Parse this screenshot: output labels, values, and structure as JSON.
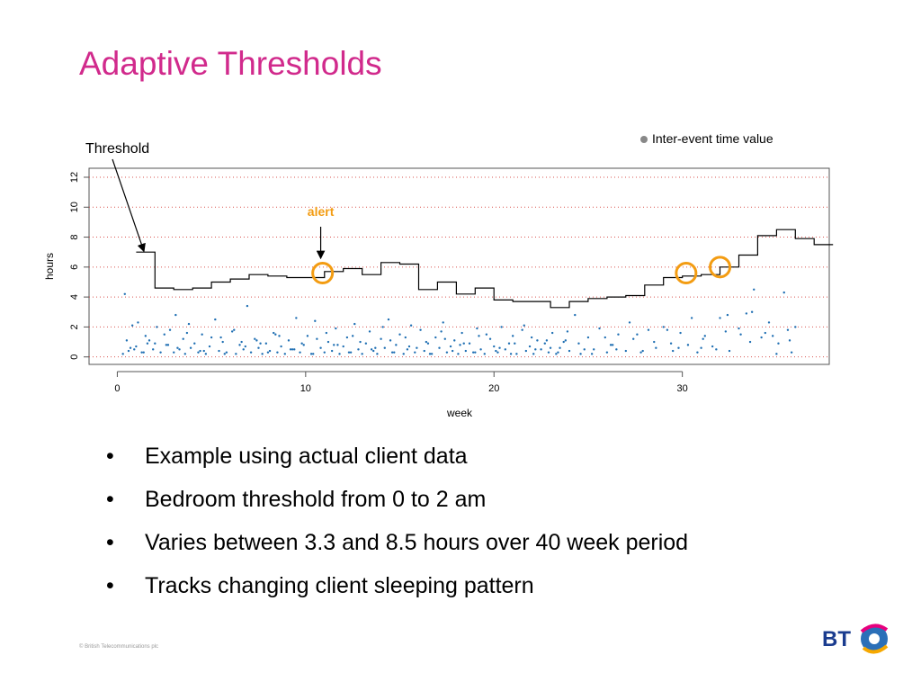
{
  "slide": {
    "title": "Adaptive Thresholds",
    "bullets": [
      "Example using actual client data",
      "Bedroom threshold from 0 to 2 am",
      "Varies between 3.3 and 8.5 hours over 40 week period",
      "Tracks changing client sleeping pattern"
    ],
    "bullet_glyph": "•",
    "copyright": "© British Telecommunications plc",
    "logo_text": "BT"
  },
  "colors": {
    "title": "#d12a8c",
    "points": "#1f6fb3",
    "alert": "#f39c12",
    "grid": "#d9534f",
    "line": "#000000"
  },
  "chart_data": {
    "type": "line",
    "xlabel": "week",
    "ylabel": "hours",
    "xlim": [
      -1.5,
      37.8
    ],
    "ylim": [
      -0.5,
      12.6
    ],
    "x_ticks": [
      0,
      10,
      20,
      30
    ],
    "y_ticks": [
      0,
      2,
      4,
      6,
      8,
      10,
      12
    ],
    "grid_y": [
      0,
      2,
      4,
      6,
      8,
      10,
      12
    ],
    "grid": true,
    "legend": {
      "label": "Inter-event time value",
      "position": "top-right"
    },
    "annotations": [
      {
        "text": "Threshold",
        "point": [
          1.3,
          7.0
        ]
      },
      {
        "text": "alert",
        "point": [
          10.8,
          6.3
        ]
      }
    ],
    "alert_markers": [
      [
        10.9,
        5.6
      ],
      [
        30.2,
        5.6
      ],
      [
        32.0,
        6.0
      ]
    ],
    "series": [
      {
        "kind": "step",
        "x": [
          1,
          2,
          3,
          4,
          5,
          6,
          7,
          8,
          9,
          10,
          11,
          12,
          13,
          14,
          15,
          16,
          17,
          18,
          19,
          20,
          21,
          22,
          23,
          24,
          25,
          26,
          27,
          28,
          29,
          30,
          31,
          32,
          33,
          34,
          35,
          36,
          37
        ],
        "y": [
          7.0,
          4.6,
          4.5,
          4.6,
          5.0,
          5.2,
          5.5,
          5.4,
          5.3,
          5.3,
          5.7,
          5.9,
          5.5,
          6.3,
          6.2,
          4.5,
          5.0,
          4.2,
          4.6,
          3.8,
          3.7,
          3.7,
          3.3,
          3.7,
          3.9,
          4.0,
          4.1,
          4.8,
          5.3,
          5.4,
          5.5,
          6.0,
          6.8,
          8.1,
          8.5,
          7.9,
          7.5
        ]
      },
      {
        "name": "Inter-event time value",
        "kind": "scatter",
        "x": [
          0.3,
          0.5,
          0.6,
          0.8,
          1.0,
          1.1,
          1.3,
          1.5,
          1.6,
          1.9,
          2.1,
          2.3,
          2.6,
          2.8,
          3.0,
          3.1,
          3.3,
          3.5,
          3.6,
          3.9,
          4.1,
          4.3,
          4.5,
          4.7,
          4.9,
          5.2,
          5.4,
          5.6,
          5.8,
          6.1,
          6.3,
          6.5,
          6.7,
          6.9,
          7.1,
          7.3,
          7.5,
          7.7,
          7.9,
          8.1,
          8.3,
          8.5,
          8.7,
          8.9,
          9.1,
          9.3,
          9.5,
          9.7,
          9.9,
          10.1,
          10.3,
          10.5,
          10.8,
          11.0,
          11.2,
          11.4,
          11.6,
          11.8,
          12.0,
          12.2,
          12.4,
          12.6,
          12.8,
          13.0,
          13.2,
          13.4,
          13.6,
          13.8,
          14.0,
          14.2,
          14.4,
          14.6,
          14.8,
          15.0,
          15.2,
          15.4,
          15.6,
          15.8,
          16.1,
          16.3,
          16.5,
          16.7,
          16.9,
          17.1,
          17.3,
          17.5,
          17.7,
          17.9,
          18.1,
          18.3,
          18.5,
          18.7,
          18.9,
          19.1,
          19.3,
          19.5,
          19.8,
          20.0,
          20.2,
          20.4,
          20.6,
          20.8,
          21.0,
          21.2,
          21.5,
          21.7,
          21.9,
          22.1,
          22.3,
          22.5,
          22.7,
          22.9,
          23.1,
          23.3,
          23.5,
          23.7,
          24.0,
          24.3,
          24.6,
          25.0,
          25.3,
          25.6,
          26.0,
          26.3,
          26.6,
          27.0,
          27.4,
          27.8,
          28.2,
          28.6,
          29.0,
          29.5,
          29.9,
          30.3,
          30.8,
          31.2,
          31.6,
          32.0,
          32.5,
          33.0,
          33.4,
          33.8,
          34.2,
          34.6,
          35.0,
          35.4,
          35.7,
          36.0,
          0.4,
          0.9,
          1.4,
          2.0,
          2.5,
          3.2,
          3.8,
          4.4,
          5.0,
          5.7,
          6.2,
          6.8,
          7.4,
          8.0,
          8.6,
          9.2,
          9.8,
          10.4,
          11.1,
          11.7,
          12.3,
          12.9,
          13.5,
          14.1,
          14.7,
          15.3,
          15.9,
          16.6,
          17.2,
          17.8,
          18.4,
          19.0,
          19.6,
          20.3,
          20.9,
          21.6,
          22.2,
          22.8,
          23.4,
          23.9,
          24.5,
          25.2,
          25.9,
          26.5,
          27.2,
          27.9,
          28.5,
          29.2,
          29.8,
          30.5,
          31.1,
          31.8,
          32.4,
          33.1,
          33.7,
          34.4,
          35.1,
          35.8,
          0.7,
          1.7,
          2.7,
          3.7,
          4.6,
          5.5,
          6.6,
          7.6,
          8.4,
          9.4,
          10.6,
          11.5,
          12.5,
          13.7,
          14.5,
          15.5,
          16.4,
          17.4,
          18.2,
          19.2,
          20.1,
          21.1,
          22.0,
          23.0,
          23.8,
          24.8,
          26.2,
          27.6,
          29.4,
          31.0,
          32.3,
          33.6,
          34.8,
          35.6
        ],
        "y": [
          0.2,
          1.1,
          0.4,
          2.1,
          0.7,
          2.3,
          0.3,
          1.4,
          0.9,
          0.5,
          2.0,
          0.3,
          0.8,
          1.8,
          0.3,
          2.8,
          0.5,
          1.2,
          0.2,
          0.6,
          0.9,
          0.3,
          1.5,
          0.2,
          0.7,
          2.5,
          0.4,
          1.0,
          0.3,
          1.7,
          0.2,
          0.8,
          0.5,
          3.4,
          0.3,
          1.2,
          0.6,
          0.2,
          0.9,
          0.4,
          1.6,
          0.3,
          0.7,
          0.2,
          1.1,
          0.5,
          2.6,
          0.3,
          0.8,
          1.4,
          0.2,
          2.4,
          0.6,
          0.3,
          1.0,
          0.4,
          1.9,
          0.2,
          0.7,
          1.3,
          0.3,
          2.2,
          0.5,
          0.2,
          0.9,
          1.7,
          0.4,
          0.2,
          1.2,
          0.6,
          2.5,
          0.3,
          0.8,
          1.5,
          0.2,
          0.5,
          2.1,
          0.3,
          1.8,
          0.4,
          0.9,
          0.2,
          1.3,
          0.6,
          2.3,
          0.3,
          0.7,
          1.1,
          0.2,
          1.6,
          0.4,
          0.9,
          0.3,
          1.9,
          0.5,
          0.2,
          1.2,
          0.7,
          0.3,
          2.0,
          0.5,
          0.9,
          1.4,
          0.2,
          1.8,
          0.4,
          0.7,
          0.2,
          1.1,
          0.5,
          0.9,
          0.3,
          1.6,
          0.2,
          0.6,
          1.0,
          0.4,
          2.8,
          0.2,
          1.3,
          0.5,
          1.9,
          0.3,
          0.8,
          1.5,
          0.4,
          1.2,
          0.3,
          1.8,
          0.6,
          2.0,
          0.4,
          1.6,
          0.8,
          0.3,
          1.4,
          0.7,
          2.6,
          0.4,
          1.9,
          2.9,
          4.5,
          1.3,
          2.3,
          0.2,
          4.3,
          1.1,
          2.0,
          4.2,
          0.5,
          0.3,
          0.9,
          1.5,
          0.6,
          2.2,
          0.4,
          1.3,
          0.2,
          1.8,
          0.7,
          1.1,
          0.3,
          1.4,
          0.5,
          0.9,
          0.2,
          1.6,
          0.8,
          0.3,
          1.0,
          0.5,
          2.0,
          0.3,
          1.3,
          0.6,
          0.2,
          1.7,
          0.4,
          0.9,
          0.3,
          1.5,
          0.6,
          0.2,
          2.1,
          0.5,
          1.1,
          0.3,
          1.7,
          0.9,
          0.2,
          1.3,
          0.5,
          2.3,
          0.4,
          1.0,
          1.8,
          0.6,
          2.6,
          1.2,
          0.5,
          2.8,
          1.5,
          3.0,
          1.6,
          0.9,
          0.3,
          0.6,
          1.1,
          0.8,
          1.6,
          0.4,
          1.3,
          1.0,
          0.9,
          1.5,
          0.5,
          1.2,
          0.8,
          1.4,
          0.6,
          1.1,
          0.7,
          1.0,
          1.2,
          0.8,
          1.4,
          0.4,
          0.9,
          1.3,
          0.6,
          1.1,
          0.5,
          0.8,
          1.5,
          0.9,
          0.6,
          1.7,
          1.0,
          1.4,
          1.8
        ]
      }
    ]
  }
}
